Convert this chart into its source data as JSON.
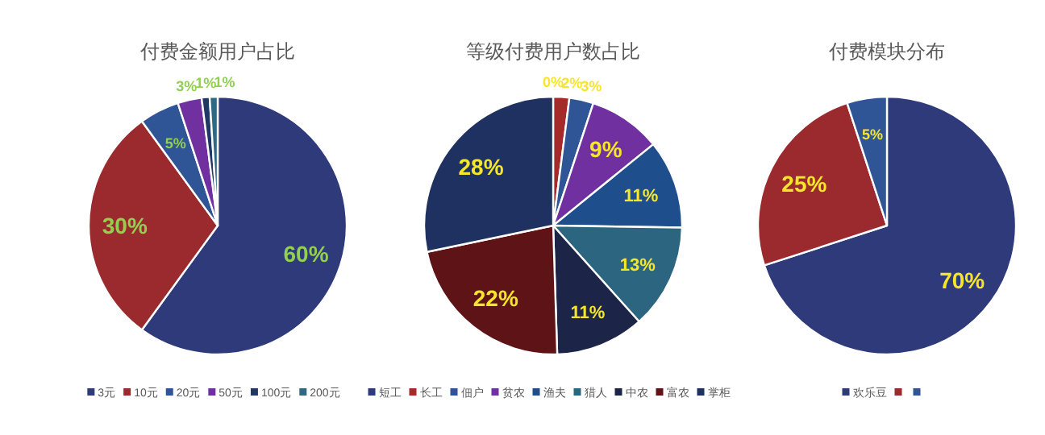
{
  "chart_data": [
    {
      "type": "pie",
      "title": "付费金额用户占比",
      "categories": [
        "3元",
        "10元",
        "20元",
        "50元",
        "100元",
        "200元"
      ],
      "values": [
        60,
        30,
        5,
        3,
        1,
        1
      ],
      "colors": [
        "#2e3a7a",
        "#9b2a2e",
        "#2f5597",
        "#7030a0",
        "#1f3864",
        "#2e6a84"
      ],
      "value_labels": [
        "60%",
        "30%",
        "5%",
        "3%",
        "1%",
        "1%"
      ],
      "legend": "bottom"
    },
    {
      "type": "pie",
      "title": "等级付费用户数占比",
      "categories": [
        "短工",
        "长工",
        "佃户",
        "贫农",
        "渔夫",
        "猎人",
        "中农",
        "富农",
        "掌柜"
      ],
      "values": [
        0,
        2,
        3,
        9,
        11,
        13,
        11,
        22,
        28
      ],
      "colors": [
        "#2e3a7a",
        "#a52a2a",
        "#2f5597",
        "#7030a0",
        "#1f4e8c",
        "#2c6580",
        "#1c2448",
        "#5e1416",
        "#1f3160"
      ],
      "value_labels": [
        "0%",
        "2%",
        "3%",
        "9%",
        "11%",
        "13%",
        "11%",
        "22%",
        "28%"
      ],
      "legend": "bottom"
    },
    {
      "type": "pie",
      "title": "付费模块分布",
      "categories": [
        "欢乐豆",
        null,
        null
      ],
      "values": [
        70,
        25,
        5
      ],
      "colors": [
        "#2e3a7a",
        "#9b2a2e",
        "#2f5597"
      ],
      "value_labels": [
        "70%",
        "25%",
        "5%"
      ],
      "legend": "bottom"
    }
  ]
}
